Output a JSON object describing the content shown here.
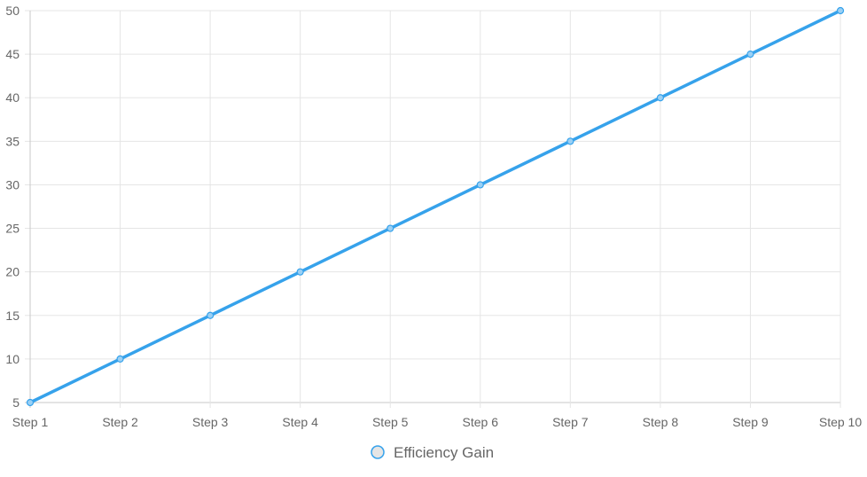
{
  "chart_data": {
    "type": "line",
    "title": "",
    "xlabel": "",
    "ylabel": "",
    "categories": [
      "Step 1",
      "Step 2",
      "Step 3",
      "Step 4",
      "Step 5",
      "Step 6",
      "Step 7",
      "Step 8",
      "Step 9",
      "Step 10"
    ],
    "series": [
      {
        "name": "Efficiency Gain",
        "values": [
          5,
          10,
          15,
          20,
          25,
          30,
          35,
          40,
          45,
          50
        ],
        "color": "#36a2eb",
        "point_fill": "#9ad0f5"
      }
    ],
    "ylim": [
      5,
      50
    ],
    "yticks": [
      5,
      10,
      15,
      20,
      25,
      30,
      35,
      40,
      45,
      50
    ],
    "grid": true,
    "legend_position": "bottom",
    "legend_marker_fill": "#e5e5e5"
  }
}
